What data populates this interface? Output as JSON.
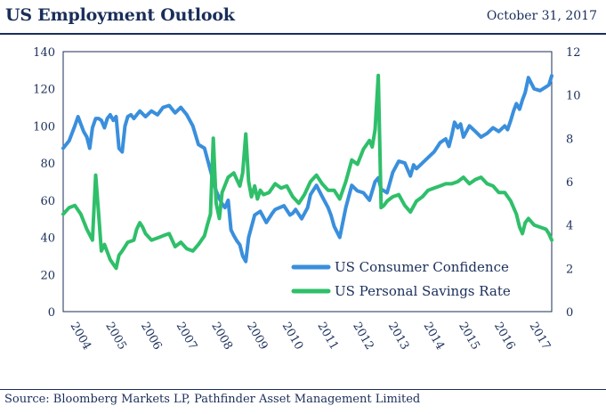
{
  "header": {
    "title": "US Employment Outlook",
    "date": "October 31, 2017"
  },
  "footer": {
    "source": "Source: Bloomberg Markets LP, Pathfinder Asset Management Limited"
  },
  "chart_data": {
    "type": "line",
    "title": "US Employment Outlook",
    "y_left": {
      "ylim": [
        0,
        140
      ],
      "ticks": [
        "0",
        "20",
        "40",
        "60",
        "80",
        "100",
        "120",
        "140"
      ]
    },
    "y_right": {
      "ylim": [
        0,
        12
      ],
      "ticks": [
        "0",
        "2",
        "4",
        "6",
        "8",
        "10",
        "12"
      ]
    },
    "x_labels": [
      "2004",
      "2005",
      "2006",
      "2007",
      "2008",
      "2009",
      "2010",
      "2011",
      "2012",
      "2013",
      "2014",
      "2015",
      "2016",
      "2017"
    ],
    "xlim": [
      2004.0,
      2017.83
    ],
    "grid": false,
    "legend": "bottom-right",
    "series": [
      {
        "name": "US Consumer Confidence",
        "axis": "left",
        "color": "#3a8fdc",
        "x": [
          2004.0,
          2004.17,
          2004.33,
          2004.42,
          2004.5,
          2004.58,
          2004.67,
          2004.75,
          2004.83,
          2004.92,
          2005.0,
          2005.08,
          2005.17,
          2005.25,
          2005.33,
          2005.42,
          2005.5,
          2005.58,
          2005.67,
          2005.75,
          2005.83,
          2005.92,
          2006.0,
          2006.17,
          2006.33,
          2006.5,
          2006.67,
          2006.83,
          2007.0,
          2007.17,
          2007.33,
          2007.5,
          2007.67,
          2007.83,
          2008.0,
          2008.17,
          2008.33,
          2008.42,
          2008.5,
          2008.58,
          2008.67,
          2008.75,
          2008.83,
          2008.92,
          2009.0,
          2009.08,
          2009.17,
          2009.25,
          2009.42,
          2009.58,
          2009.75,
          2009.92,
          2010.0,
          2010.25,
          2010.42,
          2010.5,
          2010.58,
          2010.75,
          2010.92,
          2011.0,
          2011.17,
          2011.33,
          2011.5,
          2011.58,
          2011.67,
          2011.75,
          2011.83,
          2012.0,
          2012.17,
          2012.33,
          2012.5,
          2012.67,
          2012.83,
          2012.92,
          2013.0,
          2013.17,
          2013.33,
          2013.5,
          2013.67,
          2013.83,
          2013.92,
          2014.0,
          2014.17,
          2014.33,
          2014.5,
          2014.67,
          2014.83,
          2014.92,
          2015.0,
          2015.08,
          2015.17,
          2015.25,
          2015.33,
          2015.5,
          2015.67,
          2015.83,
          2016.0,
          2016.17,
          2016.33,
          2016.5,
          2016.58,
          2016.67,
          2016.75,
          2016.83,
          2016.92,
          2017.0,
          2017.08,
          2017.17,
          2017.33,
          2017.5,
          2017.67,
          2017.75,
          2017.83
        ],
        "values": [
          88,
          92,
          100,
          105,
          101,
          97,
          94,
          88,
          99,
          104,
          104,
          103,
          99,
          104,
          106,
          103,
          105,
          88,
          86,
          100,
          105,
          106,
          104,
          108,
          105,
          108,
          106,
          110,
          111,
          107,
          110,
          106,
          100,
          90,
          88,
          76,
          65,
          61,
          58,
          56,
          60,
          44,
          41,
          38,
          36,
          30,
          27,
          40,
          52,
          54,
          48,
          53,
          55,
          57,
          52,
          53,
          55,
          50,
          56,
          63,
          68,
          62,
          56,
          52,
          46,
          43,
          40,
          56,
          68,
          65,
          64,
          60,
          70,
          72,
          66,
          64,
          75,
          81,
          80,
          73,
          79,
          77,
          80,
          83,
          86,
          91,
          93,
          89,
          95,
          102,
          99,
          101,
          94,
          100,
          97,
          94,
          96,
          99,
          97,
          100,
          98,
          103,
          108,
          112,
          109,
          114,
          118,
          126,
          120,
          119,
          121,
          122,
          127
        ]
      },
      {
        "name": "US Personal Savings Rate",
        "axis": "right",
        "color": "#2fbf6a",
        "x": [
          2004.0,
          2004.17,
          2004.33,
          2004.5,
          2004.67,
          2004.83,
          2004.92,
          2005.0,
          2005.08,
          2005.17,
          2005.33,
          2005.5,
          2005.58,
          2005.67,
          2005.83,
          2006.0,
          2006.08,
          2006.17,
          2006.25,
          2006.33,
          2006.5,
          2006.67,
          2006.83,
          2007.0,
          2007.17,
          2007.33,
          2007.5,
          2007.67,
          2007.83,
          2008.0,
          2008.08,
          2008.17,
          2008.25,
          2008.33,
          2008.42,
          2008.5,
          2008.67,
          2008.83,
          2009.0,
          2009.08,
          2009.17,
          2009.25,
          2009.33,
          2009.42,
          2009.5,
          2009.58,
          2009.67,
          2009.83,
          2010.0,
          2010.17,
          2010.33,
          2010.5,
          2010.67,
          2010.83,
          2011.0,
          2011.17,
          2011.33,
          2011.5,
          2011.67,
          2011.83,
          2012.0,
          2012.17,
          2012.33,
          2012.5,
          2012.67,
          2012.75,
          2012.83,
          2012.92,
          2013.0,
          2013.08,
          2013.17,
          2013.33,
          2013.5,
          2013.67,
          2013.83,
          2014.0,
          2014.17,
          2014.33,
          2014.5,
          2014.67,
          2014.83,
          2015.0,
          2015.17,
          2015.33,
          2015.5,
          2015.67,
          2015.83,
          2016.0,
          2016.17,
          2016.33,
          2016.5,
          2016.67,
          2016.83,
          2016.92,
          2017.0,
          2017.08,
          2017.17,
          2017.33,
          2017.5,
          2017.67,
          2017.75,
          2017.83
        ],
        "values": [
          4.5,
          4.8,
          4.9,
          4.5,
          3.8,
          3.3,
          6.3,
          4.6,
          2.8,
          3.1,
          2.4,
          2.0,
          2.6,
          2.8,
          3.2,
          3.3,
          3.8,
          4.1,
          3.9,
          3.6,
          3.3,
          3.4,
          3.5,
          3.6,
          3.0,
          3.2,
          2.9,
          2.8,
          3.1,
          3.5,
          4.0,
          4.5,
          8.0,
          5.0,
          4.3,
          5.5,
          6.2,
          6.4,
          5.8,
          6.4,
          8.2,
          6.0,
          5.3,
          5.8,
          5.2,
          5.6,
          5.4,
          5.5,
          5.9,
          5.7,
          5.8,
          5.3,
          5.0,
          5.4,
          6.0,
          6.3,
          5.9,
          5.6,
          5.6,
          5.2,
          6.0,
          7.0,
          6.8,
          7.5,
          7.9,
          7.6,
          8.4,
          10.9,
          4.8,
          4.9,
          5.1,
          5.3,
          5.4,
          4.9,
          4.6,
          5.1,
          5.3,
          5.6,
          5.7,
          5.8,
          5.9,
          5.9,
          6.0,
          6.2,
          5.9,
          6.1,
          6.2,
          5.9,
          5.8,
          5.5,
          5.5,
          5.1,
          4.5,
          3.9,
          3.6,
          4.1,
          4.3,
          4.0,
          3.9,
          3.8,
          3.6,
          3.3
        ]
      }
    ]
  }
}
